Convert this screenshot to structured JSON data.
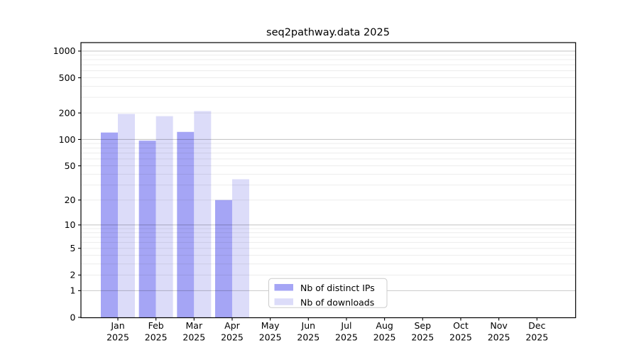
{
  "title": "seq2pathway.data 2025",
  "colors": {
    "ips_bar": "#a5a5f5",
    "downloads_bar": "#dcdcf9",
    "grid_major": "rgba(0,0,0,0.21)",
    "grid_minor": "rgba(0,0,0,0.075)",
    "axis": "#000000",
    "legend_border": "#cccccc"
  },
  "legend": {
    "items": [
      {
        "label": "Nb of distinct IPs",
        "color": "#a5a5f5"
      },
      {
        "label": "Nb of downloads",
        "color": "#dcdcf9"
      }
    ]
  },
  "y_axis": {
    "ticks": [
      0,
      1,
      2,
      5,
      10,
      20,
      50,
      100,
      200,
      500,
      1000
    ]
  },
  "x_axis": {
    "months": [
      "Jan",
      "Feb",
      "Mar",
      "Apr",
      "May",
      "Jun",
      "Jul",
      "Aug",
      "Sep",
      "Oct",
      "Nov",
      "Dec"
    ],
    "year": "2025"
  },
  "chart_data": {
    "type": "bar",
    "title": "seq2pathway.data 2025",
    "categories": [
      "Jan 2025",
      "Feb 2025",
      "Mar 2025",
      "Apr 2025",
      "May 2025",
      "Jun 2025",
      "Jul 2025",
      "Aug 2025",
      "Sep 2025",
      "Oct 2025",
      "Nov 2025",
      "Dec 2025"
    ],
    "series": [
      {
        "name": "Nb of distinct IPs",
        "values": [
          120,
          97,
          122,
          20,
          0,
          0,
          0,
          0,
          0,
          0,
          0,
          0
        ]
      },
      {
        "name": "Nb of downloads",
        "values": [
          195,
          184,
          210,
          35,
          0,
          0,
          0,
          0,
          0,
          0,
          0,
          0
        ]
      }
    ],
    "y_scale": "log10(1+x)",
    "y_tick_values": [
      0,
      1,
      2,
      5,
      10,
      20,
      50,
      100,
      200,
      500,
      1000
    ],
    "ylim": [
      0,
      1250
    ],
    "grid": true,
    "legend_position": "bottom-center"
  }
}
